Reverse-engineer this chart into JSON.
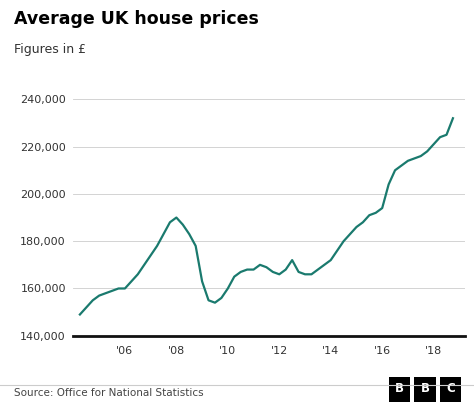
{
  "title": "Average UK house prices",
  "subtitle": "Figures in £",
  "source": "Source: Office for National Statistics",
  "line_color": "#1a7a6e",
  "background_color": "#ffffff",
  "ylim": [
    140000,
    245000
  ],
  "yticks": [
    140000,
    160000,
    180000,
    200000,
    220000,
    240000
  ],
  "xtick_labels": [
    "'06",
    "'08",
    "'10",
    "'12",
    "'14",
    "'16",
    "'18"
  ],
  "xtick_positions": [
    2006,
    2008,
    2010,
    2012,
    2014,
    2016,
    2018
  ],
  "xlim": [
    2004.0,
    2019.2
  ],
  "line_width": 1.6,
  "x": [
    2004.25,
    2004.5,
    2004.75,
    2005.0,
    2005.25,
    2005.5,
    2005.75,
    2006.0,
    2006.25,
    2006.5,
    2006.75,
    2007.0,
    2007.25,
    2007.5,
    2007.75,
    2008.0,
    2008.25,
    2008.5,
    2008.75,
    2009.0,
    2009.25,
    2009.5,
    2009.75,
    2010.0,
    2010.25,
    2010.5,
    2010.75,
    2011.0,
    2011.25,
    2011.5,
    2011.75,
    2012.0,
    2012.25,
    2012.5,
    2012.75,
    2013.0,
    2013.25,
    2013.5,
    2013.75,
    2014.0,
    2014.25,
    2014.5,
    2014.75,
    2015.0,
    2015.25,
    2015.5,
    2015.75,
    2016.0,
    2016.25,
    2016.5,
    2016.75,
    2017.0,
    2017.25,
    2017.5,
    2017.75,
    2018.0,
    2018.25,
    2018.5,
    2018.75
  ],
  "y": [
    149000,
    152000,
    155000,
    157000,
    158000,
    159000,
    160000,
    160000,
    163000,
    166000,
    170000,
    174000,
    178000,
    183000,
    188000,
    190000,
    187000,
    183000,
    178000,
    163000,
    155000,
    154000,
    156000,
    160000,
    165000,
    167000,
    168000,
    168000,
    170000,
    169000,
    167000,
    166000,
    168000,
    172000,
    167000,
    166000,
    166000,
    168000,
    170000,
    172000,
    176000,
    180000,
    183000,
    186000,
    188000,
    191000,
    192000,
    194000,
    204000,
    210000,
    212000,
    214000,
    215000,
    216000,
    218000,
    221000,
    224000,
    225000,
    232000
  ]
}
